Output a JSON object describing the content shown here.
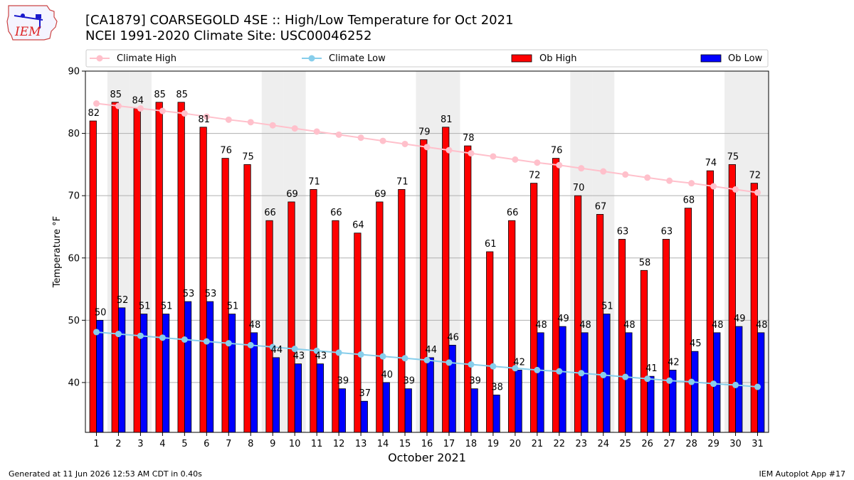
{
  "header": {
    "title_line1": "[CA1879] COARSEGOLD 4SE :: High/Low Temperature for Oct 2021",
    "title_line2": "NCEI 1991-2020 Climate Site: USC00046252",
    "logo_text": "IEM"
  },
  "footer": {
    "generated": "Generated at 11 Jun 2026 12:53 AM CDT in 0.40s",
    "app": "IEM Autoplot App #17"
  },
  "colors": {
    "ob_high": "#ff0000",
    "ob_low": "#0000ff",
    "climate_high": "#ffc0cb",
    "climate_low": "#87ceeb",
    "weekend_shade": "#eeeeee"
  },
  "chart_data": {
    "type": "bar",
    "title": "[CA1879] COARSEGOLD 4SE :: High/Low Temperature for Oct 2021",
    "xlabel": "October 2021",
    "ylabel": "Temperature °F",
    "ylim": [
      32,
      90
    ],
    "yticks": [
      40,
      50,
      60,
      70,
      80,
      90
    ],
    "grid": "horizontal",
    "legend_position": "top",
    "categories": [
      "1",
      "2",
      "3",
      "4",
      "5",
      "6",
      "7",
      "8",
      "9",
      "10",
      "11",
      "12",
      "13",
      "14",
      "15",
      "16",
      "17",
      "18",
      "19",
      "20",
      "21",
      "22",
      "23",
      "24",
      "25",
      "26",
      "27",
      "28",
      "29",
      "30",
      "31"
    ],
    "shaded_days": [
      2,
      3,
      9,
      10,
      16,
      17,
      23,
      24,
      30,
      31
    ],
    "series": [
      {
        "name": "Climate High",
        "kind": "line",
        "values": [
          84.8,
          84.4,
          84.0,
          83.6,
          83.2,
          82.7,
          82.2,
          81.8,
          81.3,
          80.8,
          80.3,
          79.8,
          79.3,
          78.8,
          78.3,
          77.8,
          77.3,
          76.8,
          76.3,
          75.8,
          75.3,
          74.9,
          74.4,
          73.9,
          73.4,
          72.9,
          72.4,
          72.0,
          71.5,
          71.0,
          70.5
        ]
      },
      {
        "name": "Climate Low",
        "kind": "line",
        "values": [
          48.1,
          47.8,
          47.5,
          47.2,
          46.9,
          46.6,
          46.3,
          46.0,
          45.7,
          45.4,
          45.1,
          44.8,
          44.5,
          44.2,
          43.9,
          43.6,
          43.2,
          42.9,
          42.6,
          42.3,
          42.0,
          41.8,
          41.5,
          41.2,
          40.9,
          40.6,
          40.3,
          40.1,
          39.8,
          39.6,
          39.3
        ]
      },
      {
        "name": "Ob High",
        "kind": "bar",
        "values": [
          82,
          85,
          84,
          85,
          85,
          81,
          76,
          75,
          66,
          69,
          71,
          66,
          64,
          69,
          71,
          79,
          81,
          78,
          61,
          66,
          72,
          76,
          70,
          67,
          63,
          58,
          63,
          68,
          74,
          75,
          72
        ]
      },
      {
        "name": "Ob Low",
        "kind": "bar",
        "values": [
          50,
          52,
          51,
          51,
          53,
          53,
          51,
          48,
          44,
          43,
          43,
          39,
          37,
          40,
          39,
          44,
          46,
          39,
          38,
          42,
          48,
          49,
          48,
          51,
          48,
          41,
          42,
          45,
          48,
          49,
          48
        ]
      }
    ]
  }
}
